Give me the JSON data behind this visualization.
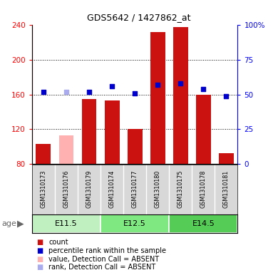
{
  "title": "GDS5642 / 1427862_at",
  "samples": [
    "GSM1310173",
    "GSM1310176",
    "GSM1310179",
    "GSM1310174",
    "GSM1310177",
    "GSM1310180",
    "GSM1310175",
    "GSM1310178",
    "GSM1310181"
  ],
  "counts": [
    103,
    113,
    155,
    153,
    120,
    232,
    238,
    160,
    92
  ],
  "absent_flags": [
    false,
    true,
    false,
    false,
    false,
    false,
    false,
    false,
    false
  ],
  "rank_values": [
    52,
    52,
    52,
    56,
    51,
    57,
    58,
    54,
    49
  ],
  "rank_absent_flags": [
    false,
    true,
    false,
    false,
    false,
    false,
    false,
    false,
    false
  ],
  "age_groups": [
    {
      "label": "E11.5",
      "start": 0,
      "end": 3,
      "color": "#c0f0c0"
    },
    {
      "label": "E12.5",
      "start": 3,
      "end": 6,
      "color": "#80e880"
    },
    {
      "label": "E14.5",
      "start": 6,
      "end": 9,
      "color": "#55cc55"
    }
  ],
  "ylim_left": [
    80,
    240
  ],
  "ylim_right": [
    0,
    100
  ],
  "yticks_left": [
    80,
    120,
    160,
    200,
    240
  ],
  "yticks_right": [
    0,
    25,
    50,
    75,
    100
  ],
  "ytick_labels_right": [
    "0",
    "25",
    "50",
    "75",
    "100%"
  ],
  "bar_color": "#cc1111",
  "absent_bar_color": "#ffb0b0",
  "dot_color": "#0000cc",
  "absent_dot_color": "#aaaaee",
  "tick_fontsize": 7.5,
  "title_fontsize": 9
}
